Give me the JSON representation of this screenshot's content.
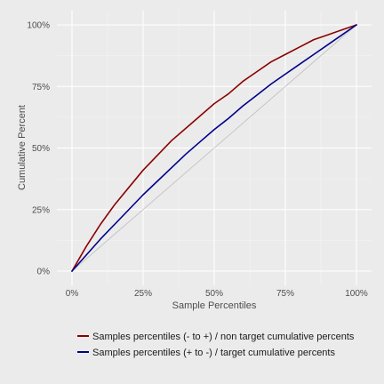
{
  "chart_data": {
    "type": "line",
    "xlabel": "Sample Percentiles",
    "ylabel": "Cumulative Percent",
    "xlim": [
      0,
      100
    ],
    "ylim": [
      0,
      100
    ],
    "x_ticks": [
      0,
      25,
      50,
      75,
      100
    ],
    "y_ticks": [
      0,
      25,
      50,
      75,
      100
    ],
    "x_tick_labels": [
      "0%",
      "25%",
      "50%",
      "75%",
      "100%"
    ],
    "y_tick_labels": [
      "0%",
      "25%",
      "50%",
      "75%",
      "100%"
    ],
    "grid": true,
    "legend_position": "bottom",
    "reference_line": {
      "x": [
        0,
        100
      ],
      "y": [
        0,
        100
      ],
      "color": "#bdbdbd"
    },
    "x": [
      0,
      5,
      10,
      15,
      20,
      25,
      30,
      35,
      40,
      45,
      50,
      55,
      60,
      65,
      70,
      75,
      80,
      85,
      90,
      95,
      100
    ],
    "series": [
      {
        "name": "Samples percentiles (- to +) / non target cumulative percents",
        "color": "#8b0000",
        "values": [
          0,
          10,
          19,
          27,
          34,
          41,
          47,
          53,
          58,
          63,
          68,
          72,
          77,
          81,
          85,
          88,
          91,
          94,
          96,
          98,
          100
        ]
      },
      {
        "name": "Samples percentiles (+ to -) / target cumulative percents",
        "color": "#00008b",
        "values": [
          0,
          6.5,
          13,
          19,
          25,
          31,
          36.5,
          42,
          47.5,
          52.5,
          57.5,
          62,
          67,
          71.5,
          76,
          80,
          84,
          88,
          92,
          96,
          100
        ]
      }
    ]
  }
}
